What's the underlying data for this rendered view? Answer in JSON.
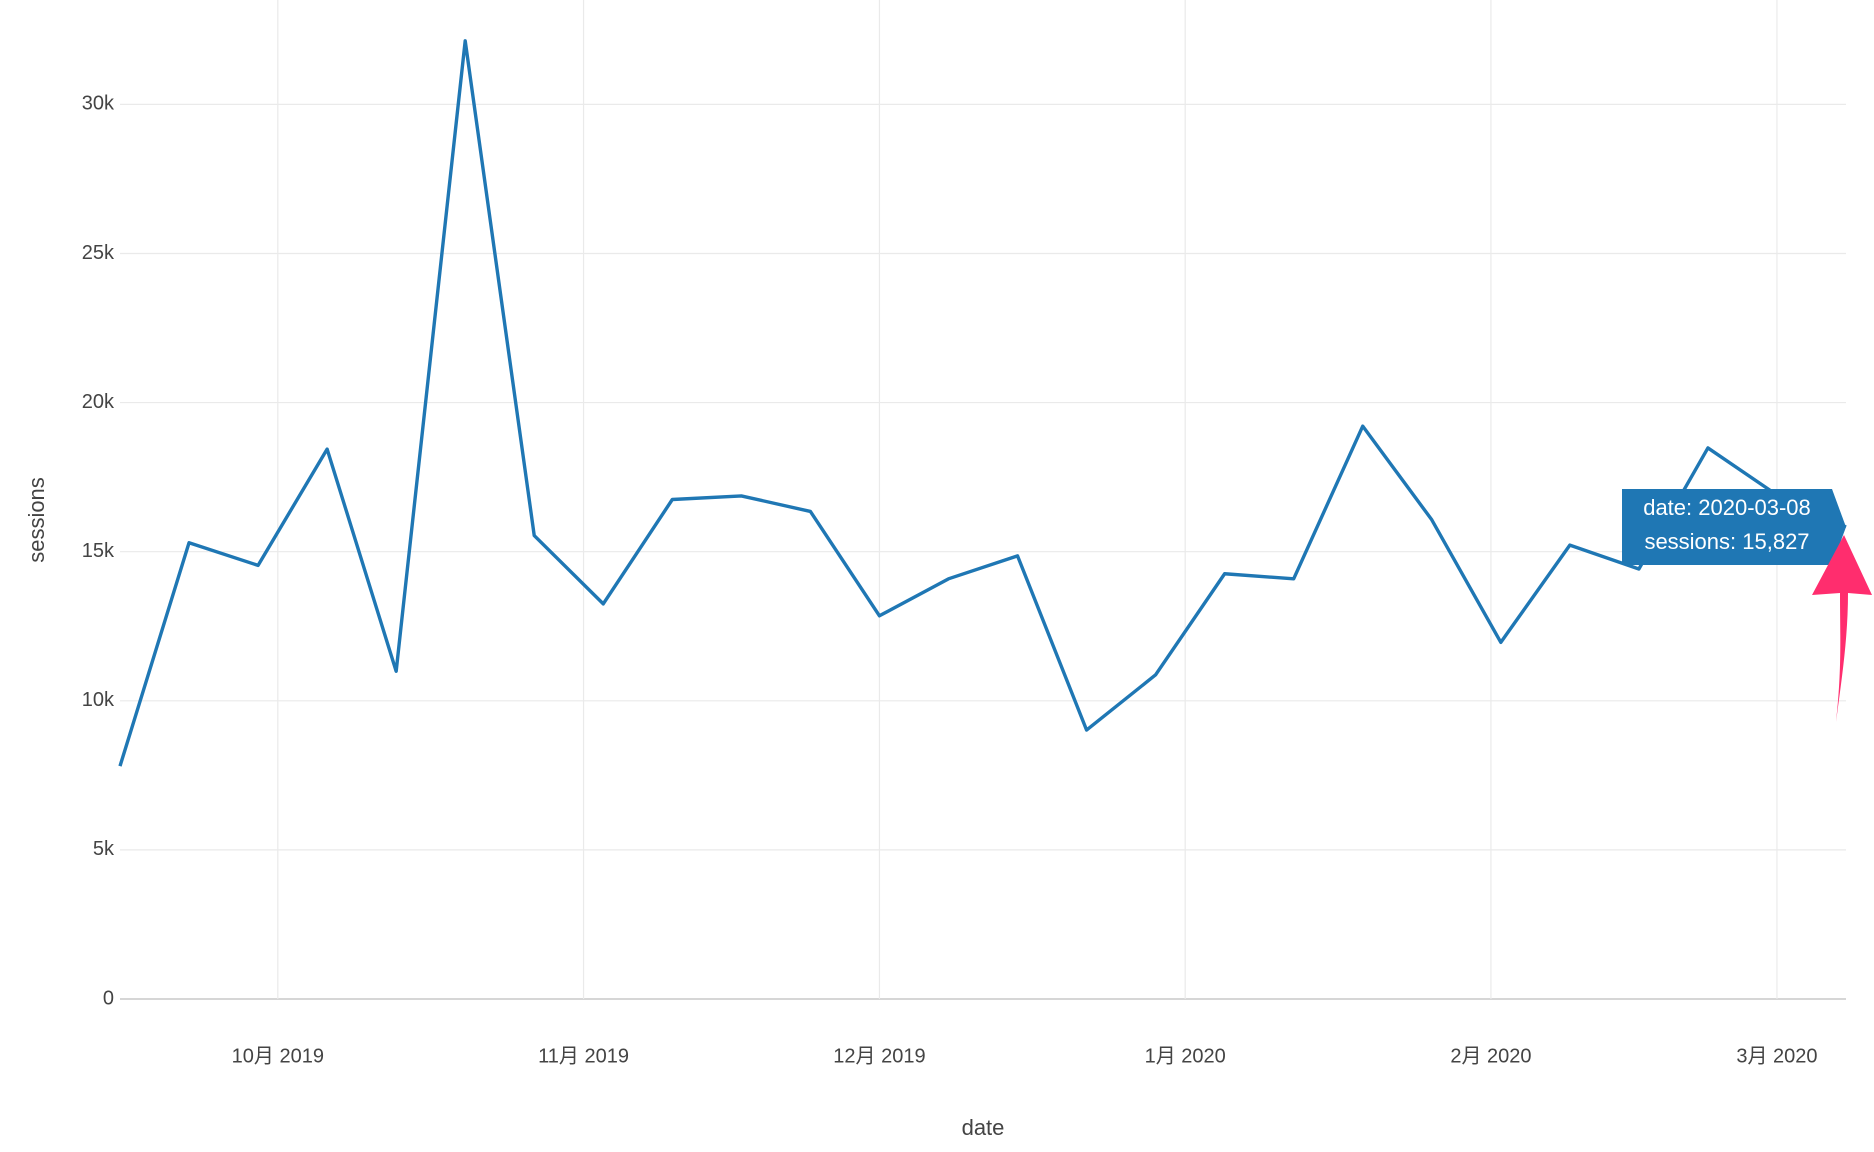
{
  "chart_data": {
    "type": "line",
    "x_label": "date",
    "y_label": "sessions",
    "x": [
      "2019-09-15",
      "2019-09-22",
      "2019-09-29",
      "2019-10-06",
      "2019-10-13",
      "2019-10-20",
      "2019-10-27",
      "2019-11-03",
      "2019-11-10",
      "2019-11-17",
      "2019-11-24",
      "2019-12-01",
      "2019-12-08",
      "2019-12-15",
      "2019-12-22",
      "2019-12-29",
      "2020-01-05",
      "2020-01-12",
      "2020-01-19",
      "2020-01-26",
      "2020-02-02",
      "2020-02-09",
      "2020-02-16",
      "2020-02-23",
      "2020-03-01",
      "2020-03-08"
    ],
    "values": [
      7810,
      15300,
      14540,
      18440,
      10990,
      32130,
      15540,
      13250,
      16750,
      16870,
      16350,
      12850,
      14090,
      14860,
      9020,
      10870,
      14260,
      14090,
      19210,
      16070,
      11960,
      15220,
      14420,
      18480,
      16900,
      15827
    ],
    "color": "#1f77b4",
    "xlim": [
      "2019-09-15",
      "2020-03-08"
    ],
    "xticks": [
      {
        "value": "2019-10-01",
        "label": "10月 2019"
      },
      {
        "value": "2019-11-01",
        "label": "11月 2019"
      },
      {
        "value": "2019-12-01",
        "label": "12月 2019"
      },
      {
        "value": "2020-01-01",
        "label": "1月 2020"
      },
      {
        "value": "2020-02-01",
        "label": "2月 2020"
      },
      {
        "value": "2020-03-01",
        "label": "3月 2020"
      }
    ],
    "ylim": [
      0,
      33500
    ],
    "yticks": [
      0,
      {
        "value": 5000,
        "label": "5k"
      },
      {
        "value": 10000,
        "label": "10k"
      },
      {
        "value": 15000,
        "label": "15k"
      },
      {
        "value": 20000,
        "label": "20k"
      },
      {
        "value": 25000,
        "label": "25k"
      },
      {
        "value": 30000,
        "label": "30k"
      }
    ],
    "grid": true,
    "tooltip": {
      "lines": [
        "date: 2020-03-08",
        "sessions: 15,827"
      ]
    }
  }
}
